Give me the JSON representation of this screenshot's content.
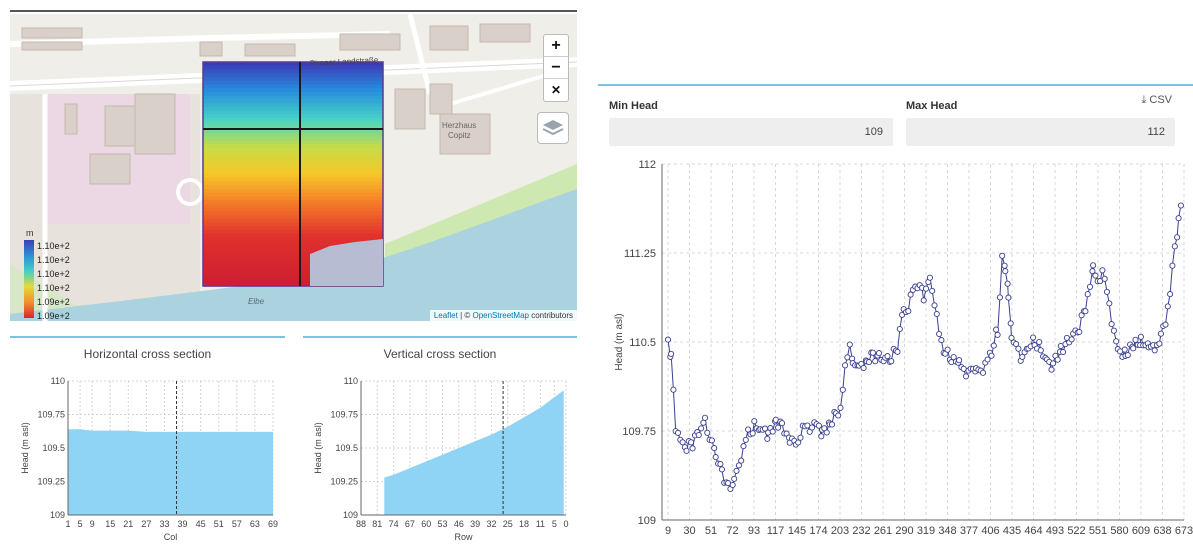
{
  "map": {
    "zoom_in_label": "+",
    "zoom_out_label": "−",
    "fullscreen_label": "✕",
    "attribution_leaflet": "Leaflet",
    "attribution_sep": " | © ",
    "attribution_osm": "OpenStreetMap",
    "attribution_suffix": " contributors",
    "legend": {
      "unit": "m",
      "labels": [
        "1.10e+2",
        "1.10e+2",
        "1.10e+2",
        "1.10e+2",
        "1.09e+2",
        "1.09e+2"
      ]
    },
    "street_labels": [
      "Pirnaer Landstraße",
      "Elbe",
      "Herzhaus Copitz"
    ],
    "colors": {
      "grid_outline": "#5b3b8e",
      "water": "#aad3df",
      "park": "#cde8b0"
    }
  },
  "horizontal_section": {
    "title": "Horizontal cross section",
    "chart_data": {
      "type": "area",
      "title": "Horizontal cross section",
      "xlabel": "Col",
      "ylabel": "Head (m asl)",
      "x_ticks": [
        "1",
        "5",
        "9",
        "15",
        "21",
        "27",
        "33",
        "39",
        "45",
        "51",
        "57",
        "63",
        "69"
      ],
      "y_ticks": [
        "109",
        "109.25",
        "109.5",
        "109.75",
        "110"
      ],
      "ylim": [
        109,
        110
      ],
      "x": [
        1,
        5,
        9,
        15,
        21,
        27,
        33,
        39,
        45,
        51,
        57,
        63,
        69
      ],
      "values": [
        109.64,
        109.64,
        109.63,
        109.63,
        109.63,
        109.62,
        109.62,
        109.62,
        109.62,
        109.62,
        109.62,
        109.62,
        109.62
      ],
      "marker_x": 37,
      "fill_color": "#8fd3f5"
    }
  },
  "vertical_section": {
    "title": "Vertical cross section",
    "chart_data": {
      "type": "area",
      "title": "Vertical cross section",
      "xlabel": "Row",
      "ylabel": "Head (m asl)",
      "x_ticks": [
        "88",
        "81",
        "74",
        "67",
        "60",
        "53",
        "46",
        "39",
        "32",
        "25",
        "18",
        "11",
        "5",
        "0"
      ],
      "y_ticks": [
        "109",
        "109.25",
        "109.5",
        "109.75",
        "110"
      ],
      "ylim": [
        109,
        110
      ],
      "x": [
        78,
        74,
        67,
        60,
        53,
        46,
        39,
        32,
        25,
        18,
        11,
        5,
        1
      ],
      "values": [
        109.28,
        109.3,
        109.35,
        109.4,
        109.45,
        109.5,
        109.55,
        109.6,
        109.66,
        109.73,
        109.8,
        109.88,
        109.93
      ],
      "marker_x": 27,
      "fill_color": "#8fd3f5"
    }
  },
  "time_series": {
    "min_head_label": "Min Head",
    "max_head_label": "Max Head",
    "min_head_value": "109",
    "max_head_value": "112",
    "csv_label": "CSV",
    "chart_data": {
      "type": "line",
      "xlabel": "",
      "ylabel": "Head (m asl)",
      "x_ticks": [
        "9",
        "30",
        "51",
        "72",
        "93",
        "117",
        "145",
        "174",
        "203",
        "232",
        "261",
        "290",
        "319",
        "348",
        "377",
        "406",
        "435",
        "464",
        "493",
        "522",
        "551",
        "580",
        "609",
        "638",
        "673"
      ],
      "y_ticks": [
        "109",
        "109.75",
        "110.5",
        "111.25",
        "112"
      ],
      "ylim": [
        109,
        112
      ],
      "keypoints": [
        [
          0,
          110.5
        ],
        [
          4,
          110.4
        ],
        [
          10,
          109.8
        ],
        [
          16,
          109.65
        ],
        [
          24,
          109.6
        ],
        [
          32,
          109.65
        ],
        [
          40,
          109.75
        ],
        [
          48,
          109.85
        ],
        [
          54,
          109.7
        ],
        [
          62,
          109.55
        ],
        [
          70,
          109.42
        ],
        [
          78,
          109.28
        ],
        [
          86,
          109.32
        ],
        [
          95,
          109.55
        ],
        [
          104,
          109.72
        ],
        [
          112,
          109.78
        ],
        [
          120,
          109.75
        ],
        [
          130,
          109.72
        ],
        [
          140,
          109.85
        ],
        [
          148,
          109.8
        ],
        [
          158,
          109.7
        ],
        [
          166,
          109.65
        ],
        [
          178,
          109.78
        ],
        [
          190,
          109.8
        ],
        [
          200,
          109.75
        ],
        [
          210,
          109.82
        ],
        [
          218,
          109.9
        ],
        [
          224,
          109.95
        ],
        [
          230,
          110.25
        ],
        [
          236,
          110.5
        ],
        [
          240,
          110.35
        ],
        [
          248,
          110.3
        ],
        [
          258,
          110.35
        ],
        [
          266,
          110.4
        ],
        [
          274,
          110.38
        ],
        [
          282,
          110.35
        ],
        [
          290,
          110.35
        ],
        [
          298,
          110.45
        ],
        [
          306,
          110.8
        ],
        [
          312,
          110.75
        ],
        [
          318,
          110.95
        ],
        [
          324,
          111.0
        ],
        [
          332,
          110.9
        ],
        [
          340,
          111.05
        ],
        [
          346,
          110.85
        ],
        [
          352,
          110.55
        ],
        [
          360,
          110.4
        ],
        [
          368,
          110.35
        ],
        [
          378,
          110.3
        ],
        [
          390,
          110.25
        ],
        [
          400,
          110.25
        ],
        [
          412,
          110.3
        ],
        [
          420,
          110.4
        ],
        [
          428,
          110.6
        ],
        [
          434,
          111.2
        ],
        [
          438,
          111.1
        ],
        [
          442,
          110.9
        ],
        [
          446,
          110.55
        ],
        [
          452,
          110.45
        ],
        [
          460,
          110.35
        ],
        [
          468,
          110.45
        ],
        [
          476,
          110.5
        ],
        [
          484,
          110.45
        ],
        [
          492,
          110.35
        ],
        [
          500,
          110.3
        ],
        [
          510,
          110.45
        ],
        [
          518,
          110.5
        ],
        [
          526,
          110.55
        ],
        [
          534,
          110.6
        ],
        [
          542,
          110.8
        ],
        [
          548,
          110.95
        ],
        [
          552,
          111.1
        ],
        [
          558,
          111.0
        ],
        [
          564,
          111.12
        ],
        [
          570,
          110.9
        ],
        [
          576,
          110.7
        ],
        [
          584,
          110.45
        ],
        [
          594,
          110.4
        ],
        [
          604,
          110.45
        ],
        [
          614,
          110.5
        ],
        [
          624,
          110.5
        ],
        [
          632,
          110.45
        ],
        [
          640,
          110.55
        ],
        [
          646,
          110.7
        ],
        [
          652,
          110.9
        ],
        [
          658,
          111.3
        ],
        [
          663,
          111.5
        ],
        [
          666,
          111.65
        ]
      ],
      "line_color": "#3a3f8f",
      "marker_color": "#3a3f8f"
    }
  }
}
